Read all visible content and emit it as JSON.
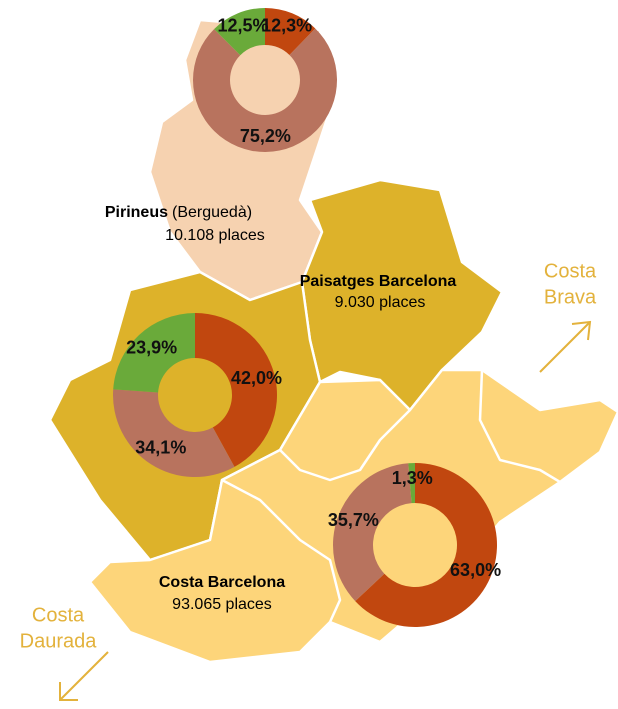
{
  "regions": [
    {
      "name": "Pirineus",
      "note": "(Berguedà)",
      "places": "10.108 places"
    },
    {
      "name": "Paisatges Barcelona",
      "places": "9.030 places"
    },
    {
      "name": "Costa Barcelona",
      "places": "93.065 places"
    }
  ],
  "directions": [
    {
      "lines": [
        "Costa",
        "Brava"
      ]
    },
    {
      "lines": [
        "Costa",
        "Daurada"
      ]
    }
  ],
  "donuts": [
    {
      "type": "pie",
      "colors": [
        "#c1470f",
        "#b8735e",
        "#6aaa3a"
      ],
      "values": [
        12.3,
        75.2,
        12.5
      ],
      "value_labels": [
        "12,3%",
        "75,2%",
        "12,5%"
      ]
    },
    {
      "type": "pie",
      "colors": [
        "#c1470f",
        "#b8735e",
        "#6aaa3a"
      ],
      "values": [
        42.0,
        34.1,
        23.9
      ],
      "value_labels": [
        "42,0%",
        "34,1%",
        "23,9%"
      ]
    },
    {
      "type": "pie",
      "colors": [
        "#c1470f",
        "#b8735e",
        "#6aaa3a"
      ],
      "values": [
        63.0,
        35.7,
        1.3
      ],
      "value_labels": [
        "63,0%",
        "35,7%",
        "1,3%"
      ]
    }
  ]
}
